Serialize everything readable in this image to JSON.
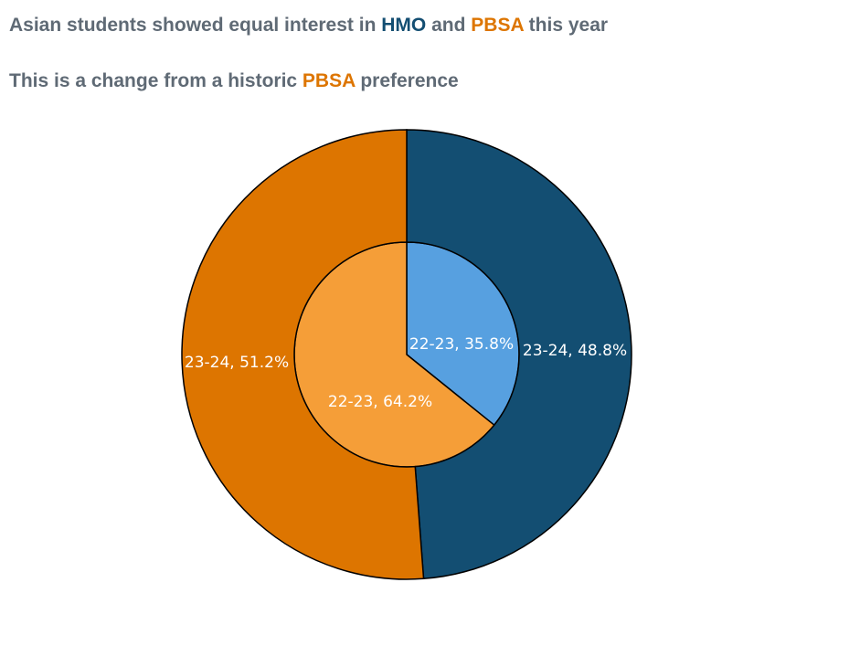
{
  "title": {
    "parts": [
      {
        "text": "Asian students showed equal interest in ",
        "color": "#5f6a75"
      },
      {
        "text": "HMO",
        "color": "#134e72"
      },
      {
        "text": " and ",
        "color": "#5f6a75"
      },
      {
        "text": "PBSA",
        "color": "#dd7500"
      },
      {
        "text": " this year",
        "color": "#5f6a75"
      }
    ]
  },
  "subtitle": {
    "parts": [
      {
        "text": "This is a change from a historic ",
        "color": "#5f6a75"
      },
      {
        "text": "PBSA",
        "color": "#dd7500"
      },
      {
        "text": " preference",
        "color": "#5f6a75"
      }
    ]
  },
  "chart_data": {
    "type": "pie",
    "variant": "nested-donut",
    "rings": [
      {
        "ring": "inner",
        "slices": [
          {
            "category": "HMO",
            "label": "22-23, 35.8%",
            "value": 35.8,
            "color": "#57a0e0"
          },
          {
            "category": "PBSA",
            "label": "22-23, 64.2%",
            "value": 64.2,
            "color": "#f59e38"
          }
        ]
      },
      {
        "ring": "outer",
        "slices": [
          {
            "category": "HMO",
            "label": "23-24, 48.8%",
            "value": 48.8,
            "color": "#134e72"
          },
          {
            "category": "PBSA",
            "label": "23-24, 51.2%",
            "value": 51.2,
            "color": "#dd7500"
          }
        ]
      }
    ],
    "legend": "none"
  }
}
